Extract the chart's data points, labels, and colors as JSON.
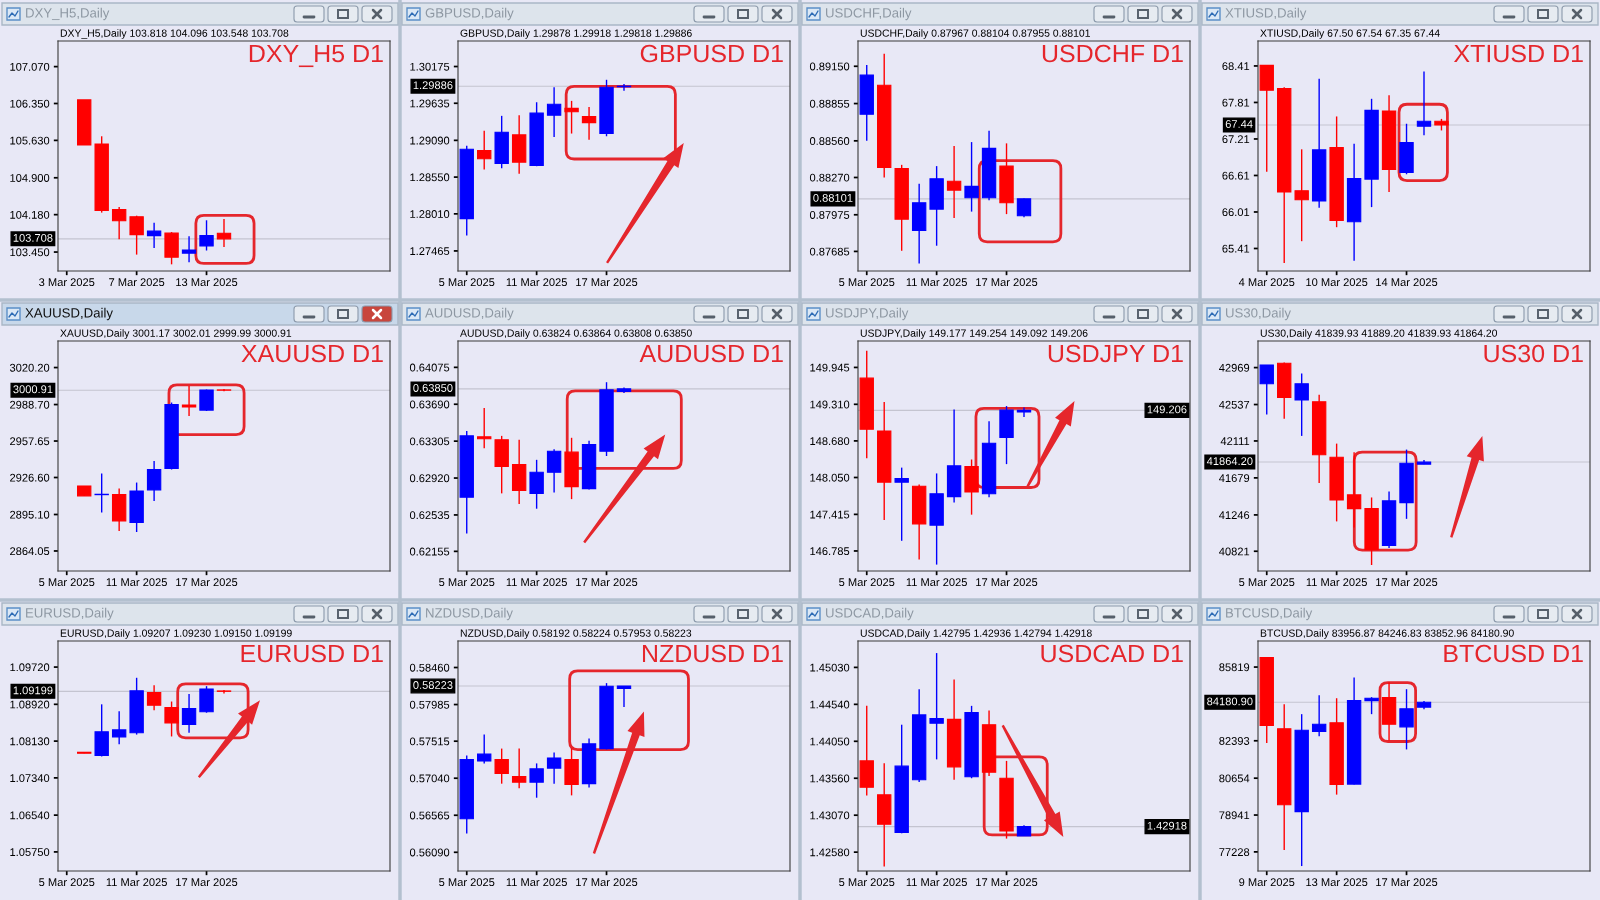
{
  "chart_data": [
    {
      "type": "candlestick",
      "title": "DXY_H5,Daily",
      "subtitle": "DXY_H5,Daily 103.818 104.096 103.548 103.708",
      "annotations": [
        "DXY_H5 D1"
      ],
      "categories": [
        "3 Mar 2025",
        null,
        null,
        null,
        "7 Mar 2025",
        null,
        null,
        null,
        "13 Mar 2025",
        null,
        null,
        null,
        null,
        null,
        null,
        null,
        null,
        null,
        null
      ],
      "ohlc": [
        null,
        [
          106.42,
          106.42,
          105.54,
          105.54
        ],
        [
          105.56,
          105.71,
          104.22,
          104.26
        ],
        [
          104.28,
          104.33,
          103.7,
          104.06
        ],
        [
          104.14,
          104.16,
          103.4,
          103.79
        ],
        [
          103.77,
          104.02,
          103.53,
          103.86
        ],
        [
          103.82,
          103.84,
          103.21,
          103.35
        ],
        [
          103.43,
          103.76,
          103.25,
          103.49
        ],
        [
          103.57,
          104.07,
          103.48,
          103.77
        ],
        [
          103.818,
          104.096,
          103.548,
          103.708
        ],
        null,
        null,
        null,
        null,
        null,
        null,
        null,
        null,
        null
      ],
      "colors": [
        null,
        "#ff0000",
        "#ff0000",
        "#ff0000",
        "#ff0000",
        "#0000ff",
        "#ff0000",
        "#0000ff",
        "#0000ff",
        "#ff0000",
        null,
        null,
        null,
        null,
        null,
        null,
        null,
        null,
        null
      ],
      "ylim": [
        103.08,
        107.57
      ],
      "yticks": [
        {
          "value": 103.45,
          "label": "103.450"
        },
        {
          "value": 104.18,
          "label": "104.180"
        },
        {
          "value": 104.9,
          "label": "104.900"
        },
        {
          "value": 105.63,
          "label": "105.630"
        },
        {
          "value": 106.35,
          "label": "106.350"
        },
        {
          "value": 107.07,
          "label": "107.070"
        }
      ],
      "ref_lines": [
        {
          "axis": "y",
          "value": 103.708,
          "label": "103.708",
          "color": "#c4c4d0"
        }
      ]
    },
    {
      "type": "candlestick",
      "title": "GBPUSD,Daily",
      "subtitle": "GBPUSD,Daily 1.29878 1.29918 1.29818 1.29886",
      "annotations": [
        "GBPUSD D1"
      ],
      "categories": [
        "5 Mar 2025",
        null,
        null,
        null,
        "11 Mar 2025",
        null,
        null,
        null,
        "17 Mar 2025",
        null,
        null,
        null,
        null,
        null,
        null,
        null,
        null,
        null,
        null
      ],
      "ohlc": [
        [
          1.2794,
          1.2901,
          1.2769,
          1.2896
        ],
        [
          1.2894,
          1.2923,
          1.2866,
          1.2882
        ],
        [
          1.2875,
          1.2945,
          1.2868,
          1.2921
        ],
        [
          1.2917,
          1.2946,
          1.286,
          1.2877
        ],
        [
          1.2872,
          1.2965,
          1.2871,
          1.2949
        ],
        [
          1.2946,
          1.2987,
          1.2914,
          1.2962
        ],
        [
          1.2956,
          1.2967,
          1.2919,
          1.2951
        ],
        [
          1.2944,
          1.2958,
          1.291,
          1.2935
        ],
        [
          1.2919,
          1.2998,
          1.2915,
          1.2987
        ],
        [
          1.29878,
          1.29918,
          1.29818,
          1.29886
        ],
        null,
        null,
        null,
        null,
        null,
        null,
        null,
        null,
        null
      ],
      "colors": [
        "#0000ff",
        "#ff0000",
        "#0000ff",
        "#ff0000",
        "#0000ff",
        "#0000ff",
        "#ff0000",
        "#ff0000",
        "#0000ff",
        "#0000ff",
        null,
        null,
        null,
        null,
        null,
        null,
        null,
        null,
        null
      ],
      "ylim": [
        1.2717,
        1.3055
      ],
      "yticks": [
        1.27465,
        {
          "value": 1.2801,
          "label": "1.28010"
        },
        {
          "value": 1.2855,
          "label": "1.28550"
        },
        {
          "value": 1.2909,
          "label": "1.29090"
        },
        1.29635,
        1.30175
      ],
      "ref_lines": [
        {
          "axis": "y",
          "value": 1.29886,
          "label": "1.29886",
          "color": "#c4c4d0"
        }
      ]
    },
    {
      "type": "candlestick",
      "title": "USDCHF,Daily",
      "subtitle": "USDCHF,Daily 0.87967 0.88104 0.87955 0.88101",
      "annotations": [
        "USDCHF D1"
      ],
      "categories": [
        "5 Mar 2025",
        null,
        null,
        null,
        "11 Mar 2025",
        null,
        null,
        null,
        "17 Mar 2025",
        null,
        null,
        null,
        null,
        null,
        null,
        null,
        null,
        null,
        null
      ],
      "ohlc": [
        [
          0.8877,
          0.8916,
          0.8856,
          0.8908
        ],
        [
          0.89,
          0.8925,
          0.8827,
          0.8835
        ],
        [
          0.8834,
          0.8837,
          0.8769,
          0.8794
        ],
        [
          0.8785,
          0.8822,
          0.8759,
          0.8807
        ],
        [
          0.8802,
          0.8836,
          0.8773,
          0.8826
        ],
        [
          0.8824,
          0.8852,
          0.8795,
          0.8817
        ],
        [
          0.8811,
          0.8855,
          0.88,
          0.882
        ],
        [
          0.8811,
          0.8864,
          0.8809,
          0.885
        ],
        [
          0.8836,
          0.8854,
          0.8798,
          0.8807
        ],
        [
          0.87967,
          0.88104,
          0.87955,
          0.88101
        ],
        null,
        null,
        null,
        null,
        null,
        null,
        null,
        null,
        null
      ],
      "colors": [
        "#0000ff",
        "#ff0000",
        "#ff0000",
        "#0000ff",
        "#0000ff",
        "#ff0000",
        "#0000ff",
        "#0000ff",
        "#ff0000",
        "#0000ff",
        null,
        null,
        null,
        null,
        null,
        null,
        null,
        null,
        null
      ],
      "ylim": [
        0.8753,
        0.8935
      ],
      "yticks": [
        0.87685,
        0.87975,
        {
          "value": 0.8827,
          "label": "0.88270"
        },
        {
          "value": 0.8856,
          "label": "0.88560"
        },
        0.88855,
        {
          "value": 0.8915,
          "label": "0.89150"
        }
      ],
      "ref_lines": [
        {
          "axis": "y",
          "value": 0.88101,
          "label": "0.88101",
          "color": "#c4c4d0"
        }
      ]
    },
    {
      "type": "candlestick",
      "title": "XTIUSD,Daily",
      "subtitle": "XTIUSD,Daily 67.50 67.54 67.35 67.44",
      "annotations": [
        "XTIUSD D1"
      ],
      "categories": [
        "4 Mar 2025",
        null,
        null,
        null,
        "10 Mar 2025",
        null,
        null,
        null,
        "14 Mar 2025",
        null,
        null,
        null,
        null,
        null,
        null,
        null,
        null,
        null,
        null
      ],
      "ohlc": [
        [
          68.42,
          68.42,
          66.67,
          68.01
        ],
        [
          68.04,
          68.06,
          65.17,
          66.34
        ],
        [
          66.36,
          67.04,
          65.53,
          66.21
        ],
        [
          66.19,
          68.2,
          66.08,
          67.03
        ],
        [
          67.07,
          67.58,
          65.76,
          65.87
        ],
        [
          65.85,
          67.13,
          65.21,
          66.56
        ],
        [
          66.55,
          67.87,
          66.09,
          67.68
        ],
        [
          67.67,
          67.93,
          66.34,
          66.71
        ],
        [
          66.66,
          67.46,
          66.63,
          67.15
        ],
        [
          67.42,
          68.32,
          67.27,
          67.5
        ],
        [
          67.5,
          67.54,
          67.35,
          67.44
        ],
        null,
        null,
        null,
        null,
        null,
        null,
        null,
        null
      ],
      "colors": [
        "#ff0000",
        "#ff0000",
        "#ff0000",
        "#0000ff",
        "#ff0000",
        "#0000ff",
        "#0000ff",
        "#ff0000",
        "#0000ff",
        "#0000ff",
        "#ff0000",
        null,
        null,
        null,
        null,
        null,
        null,
        null,
        null
      ],
      "ylim": [
        65.04,
        68.82
      ],
      "yticks": [
        65.41,
        66.01,
        66.61,
        67.21,
        67.81,
        68.41
      ],
      "ref_lines": [
        {
          "axis": "y",
          "value": 67.44,
          "label": "67.44",
          "color": "#c4c4d0"
        }
      ]
    },
    {
      "type": "candlestick",
      "title": "XAUUSD,Daily",
      "subtitle": "XAUUSD,Daily 3001.17 3002.01 2999.99 3000.91",
      "annotations": [
        "XAUUSD D1"
      ],
      "categories": [
        "5 Mar 2025",
        null,
        null,
        null,
        "11 Mar 2025",
        null,
        null,
        null,
        "17 Mar 2025",
        null,
        null,
        null,
        null,
        null,
        null,
        null,
        null,
        null,
        null
      ],
      "ohlc": [
        null,
        [
          2919.4,
          2919.4,
          2910.9,
          2910.9
        ],
        [
          2912.0,
          2930.0,
          2896.8,
          2912.3
        ],
        [
          2912.1,
          2917.2,
          2881.1,
          2889.6
        ],
        [
          2888.3,
          2922.3,
          2880.2,
          2915.1
        ],
        [
          2916.0,
          2940.6,
          2906.6,
          2933.4
        ],
        [
          2934.3,
          2990.4,
          2933.4,
          2988.7
        ],
        [
          2988.3,
          3004.5,
          2978.9,
          2986.6
        ],
        [
          2984.0,
          3001.5,
          2983.2,
          3001.1
        ],
        [
          3001.17,
          3002.01,
          2999.99,
          3000.91
        ],
        null,
        null,
        null,
        null,
        null,
        null,
        null,
        null,
        null
      ],
      "colors": [
        null,
        "#ff0000",
        "#0000ff",
        "#ff0000",
        "#0000ff",
        "#0000ff",
        "#0000ff",
        "#ff0000",
        "#0000ff",
        "#ff0000",
        null,
        null,
        null,
        null,
        null,
        null,
        null,
        null,
        null
      ],
      "ylim": [
        2847.0,
        3042.8
      ],
      "yticks": [
        2864.05,
        {
          "value": 2895.1,
          "label": "2895.10"
        },
        {
          "value": 2926.6,
          "label": "2926.60"
        },
        2957.65,
        {
          "value": 2988.7,
          "label": "2988.70"
        },
        {
          "value": 3020.2,
          "label": "3020.20"
        }
      ],
      "ref_lines": [
        {
          "axis": "y",
          "value": 3000.91,
          "label": "3000.91",
          "color": "#c4c4d0"
        }
      ]
    },
    {
      "type": "candlestick",
      "title": "AUDUSD,Daily",
      "subtitle": "AUDUSD,Daily 0.63824 0.63864 0.63808 0.63850",
      "annotations": [
        "AUDUSD D1"
      ],
      "categories": [
        "5 Mar 2025",
        null,
        null,
        null,
        "11 Mar 2025",
        null,
        null,
        null,
        "17 Mar 2025",
        null,
        null,
        null,
        null,
        null,
        null,
        null,
        null,
        null,
        null
      ],
      "ohlc": [
        [
          0.6272,
          0.6341,
          0.6234,
          0.6336
        ],
        [
          0.6335,
          0.6365,
          0.6323,
          0.6333
        ],
        [
          0.6332,
          0.6336,
          0.6276,
          0.6304
        ],
        [
          0.6306,
          0.6332,
          0.6265,
          0.6279
        ],
        [
          0.6276,
          0.6311,
          0.626,
          0.6298
        ],
        [
          0.6298,
          0.6322,
          0.6277,
          0.632
        ],
        [
          0.6319,
          0.6334,
          0.627,
          0.6283
        ],
        [
          0.6281,
          0.6331,
          0.628,
          0.6327
        ],
        [
          0.632,
          0.6392,
          0.6315,
          0.6384
        ],
        [
          0.63824,
          0.63864,
          0.63808,
          0.6385
        ],
        null,
        null,
        null,
        null,
        null,
        null,
        null,
        null,
        null
      ],
      "colors": [
        "#0000ff",
        "#ff0000",
        "#ff0000",
        "#ff0000",
        "#0000ff",
        "#0000ff",
        "#ff0000",
        "#0000ff",
        "#0000ff",
        "#0000ff",
        null,
        null,
        null,
        null,
        null,
        null,
        null,
        null,
        null
      ],
      "ylim": [
        0.6195,
        0.6435
      ],
      "yticks": [
        0.62155,
        0.62535,
        {
          "value": 0.6292,
          "label": "0.62920"
        },
        0.63305,
        {
          "value": 0.6369,
          "label": "0.63690"
        },
        0.64075
      ],
      "ref_lines": [
        {
          "axis": "y",
          "value": 0.6385,
          "label": "0.63850",
          "color": "#c4c4d0"
        }
      ]
    },
    {
      "type": "candlestick",
      "title": "USDJPY,Daily",
      "subtitle": "USDJPY,Daily 149.177 149.254 149.092 149.206",
      "annotations": [
        "USDJPY D1"
      ],
      "categories": [
        "5 Mar 2025",
        null,
        null,
        null,
        "11 Mar 2025",
        null,
        null,
        null,
        "17 Mar 2025",
        null,
        null,
        null,
        null,
        null,
        null,
        null,
        null,
        null,
        null
      ],
      "ohlc": [
        [
          149.76,
          150.23,
          148.38,
          148.88
        ],
        [
          148.85,
          149.35,
          147.32,
          147.97
        ],
        [
          147.97,
          148.22,
          146.96,
          148.03
        ],
        [
          147.9,
          147.93,
          146.64,
          147.25
        ],
        [
          147.23,
          148.12,
          146.55,
          147.77
        ],
        [
          147.72,
          149.22,
          147.62,
          148.25
        ],
        [
          148.24,
          148.36,
          147.41,
          147.8
        ],
        [
          147.77,
          149.02,
          147.71,
          148.64
        ],
        [
          148.74,
          149.28,
          148.28,
          149.21
        ],
        [
          149.177,
          149.254,
          149.092,
          149.206
        ],
        null,
        null,
        null,
        null,
        null,
        null,
        null,
        null,
        null
      ],
      "colors": [
        "#ff0000",
        "#ff0000",
        "#0000ff",
        "#ff0000",
        "#0000ff",
        "#0000ff",
        "#ff0000",
        "#0000ff",
        "#0000ff",
        "#0000ff",
        null,
        null,
        null,
        null,
        null,
        null,
        null,
        null,
        null
      ],
      "ylim": [
        146.44,
        150.4
      ],
      "yticks": [
        146.785,
        147.415,
        {
          "value": 148.05,
          "label": "148.050"
        },
        {
          "value": 148.68,
          "label": "148.680"
        },
        {
          "value": 149.31,
          "label": "149.310"
        },
        149.945
      ],
      "ref_lines": [
        {
          "axis": "y",
          "value": 149.206,
          "label": "149.206",
          "color": "#c4c4d0"
        }
      ]
    },
    {
      "type": "candlestick",
      "title": "US30,Daily",
      "subtitle": "US30,Daily 41839.93 41889.20 41839.93 41864.20",
      "annotations": [
        "US30 D1"
      ],
      "categories": [
        "5 Mar 2025",
        null,
        null,
        null,
        "11 Mar 2025",
        null,
        null,
        null,
        "17 Mar 2025",
        null,
        null,
        null,
        null,
        null,
        null,
        null,
        null,
        null,
        null
      ],
      "ohlc": [
        [
          42780,
          43000,
          42420,
          43000
        ],
        [
          43020,
          43030,
          42370,
          42620
        ],
        [
          42590,
          42900,
          42170,
          42780
        ],
        [
          42570,
          42650,
          41620,
          41950
        ],
        [
          41920,
          42080,
          41170,
          41420
        ],
        [
          41480,
          41980,
          41100,
          41320
        ],
        [
          41320,
          41450,
          40660,
          40840
        ],
        [
          40890,
          41520,
          40860,
          41410
        ],
        [
          41390,
          42010,
          41200,
          41850
        ],
        [
          41839.93,
          41889.2,
          41839.93,
          41864.2
        ],
        null,
        null,
        null,
        null,
        null,
        null,
        null,
        null,
        null
      ],
      "colors": [
        "#0000ff",
        "#ff0000",
        "#0000ff",
        "#ff0000",
        "#ff0000",
        "#ff0000",
        "#ff0000",
        "#0000ff",
        "#0000ff",
        "#0000ff",
        null,
        null,
        null,
        null,
        null,
        null,
        null,
        null,
        null
      ],
      "ylim": [
        40590,
        43280
      ],
      "yticks": [
        40821,
        41246,
        41679,
        42111,
        42537,
        42969
      ],
      "ref_lines": [
        {
          "axis": "y",
          "value": 41864.2,
          "label": "41864.20",
          "color": "#c4c4d0"
        }
      ]
    },
    {
      "type": "candlestick",
      "title": "EURUSD,Daily",
      "subtitle": "EURUSD,Daily 1.09207 1.09230 1.09150 1.09199",
      "annotations": [
        "EURUSD D1"
      ],
      "categories": [
        "5 Mar 2025",
        null,
        null,
        null,
        "11 Mar 2025",
        null,
        null,
        null,
        "17 Mar 2025",
        null,
        null,
        null,
        null,
        null,
        null,
        null,
        null,
        null,
        null
      ],
      "ohlc": [
        null,
        [
          1.0789,
          1.0789,
          1.0787,
          1.0787
        ],
        [
          1.0782,
          1.0892,
          1.078,
          1.0833
        ],
        [
          1.0822,
          1.0877,
          1.0806,
          1.0837
        ],
        [
          1.0831,
          1.0949,
          1.0827,
          1.0921
        ],
        [
          1.0917,
          1.0933,
          1.0879,
          1.089
        ],
        [
          1.0885,
          1.0898,
          1.0823,
          1.0852
        ],
        [
          1.0849,
          1.0914,
          1.0831,
          1.0883
        ],
        [
          1.0876,
          1.0931,
          1.0874,
          1.0925
        ],
        [
          1.09207,
          1.0923,
          1.0915,
          1.09199
        ],
        null,
        null,
        null,
        null,
        null,
        null,
        null,
        null,
        null
      ],
      "colors": [
        null,
        "#ff0000",
        "#0000ff",
        "#0000ff",
        "#0000ff",
        "#ff0000",
        "#ff0000",
        "#0000ff",
        "#0000ff",
        "#ff0000",
        null,
        null,
        null,
        null,
        null,
        null,
        null,
        null,
        null
      ],
      "ylim": [
        1.0534,
        1.1028
      ],
      "yticks": [
        {
          "value": 1.0575,
          "label": "1.05750"
        },
        {
          "value": 1.0654,
          "label": "1.06540"
        },
        {
          "value": 1.0734,
          "label": "1.07340"
        },
        {
          "value": 1.0813,
          "label": "1.08130"
        },
        {
          "value": 1.0892,
          "label": "1.08920"
        },
        {
          "value": 1.0972,
          "label": "1.09720"
        }
      ],
      "ref_lines": [
        {
          "axis": "y",
          "value": 1.09199,
          "label": "1.09199",
          "color": "#c4c4d0"
        }
      ]
    },
    {
      "type": "candlestick",
      "title": "NZDUSD,Daily",
      "subtitle": "NZDUSD,Daily 0.58192 0.58224 0.57953 0.58223",
      "annotations": [
        "NZDUSD D1"
      ],
      "categories": [
        "5 Mar 2025",
        null,
        null,
        null,
        "11 Mar 2025",
        null,
        null,
        null,
        "17 Mar 2025",
        null,
        null,
        null,
        null,
        null,
        null,
        null,
        null,
        null,
        null
      ],
      "ohlc": [
        [
          0.5652,
          0.5733,
          0.5633,
          0.5728
        ],
        [
          0.5726,
          0.576,
          0.5723,
          0.5735
        ],
        [
          0.5728,
          0.5742,
          0.5697,
          0.571
        ],
        [
          0.5706,
          0.5742,
          0.5691,
          0.5699
        ],
        [
          0.5699,
          0.5723,
          0.5679,
          0.5716
        ],
        [
          0.5717,
          0.5737,
          0.5697,
          0.573
        ],
        [
          0.5728,
          0.5742,
          0.5682,
          0.5696
        ],
        [
          0.5697,
          0.5755,
          0.5692,
          0.5748
        ],
        [
          0.5742,
          0.5826,
          0.5741,
          0.5822
        ],
        [
          0.58192,
          0.58224,
          0.57953,
          0.58223
        ],
        null,
        null,
        null,
        null,
        null,
        null,
        null,
        null,
        null
      ],
      "colors": [
        "#0000ff",
        "#0000ff",
        "#ff0000",
        "#ff0000",
        "#0000ff",
        "#0000ff",
        "#ff0000",
        "#0000ff",
        "#0000ff",
        "#0000ff",
        null,
        null,
        null,
        null,
        null,
        null,
        null,
        null,
        null
      ],
      "ylim": [
        0.5585,
        0.588
      ],
      "yticks": [
        {
          "value": 0.5609,
          "label": "0.56090"
        },
        0.56565,
        {
          "value": 0.5704,
          "label": "0.57040"
        },
        0.57515,
        0.57985,
        {
          "value": 0.5846,
          "label": "0.58460"
        }
      ],
      "ref_lines": [
        {
          "axis": "y",
          "value": 0.58223,
          "label": "0.58223",
          "color": "#c4c4d0"
        }
      ]
    },
    {
      "type": "candlestick",
      "title": "USDCAD,Daily",
      "subtitle": "USDCAD,Daily 1.42795 1.42936 1.42794 1.42918",
      "annotations": [
        "USDCAD D1"
      ],
      "categories": [
        "5 Mar 2025",
        null,
        null,
        null,
        "11 Mar 2025",
        null,
        null,
        null,
        "17 Mar 2025",
        null,
        null,
        null,
        null,
        null,
        null,
        null,
        null,
        null,
        null
      ],
      "ohlc": [
        [
          1.4379,
          1.4452,
          1.4333,
          1.4344
        ],
        [
          1.4334,
          1.4376,
          1.4239,
          1.4295
        ],
        [
          1.4284,
          1.4427,
          1.4283,
          1.4372
        ],
        [
          1.4354,
          1.4474,
          1.4351,
          1.444
        ],
        [
          1.4429,
          1.4522,
          1.4381,
          1.4435
        ],
        [
          1.4434,
          1.4487,
          1.4354,
          1.4371
        ],
        [
          1.4358,
          1.4452,
          1.4356,
          1.4443
        ],
        [
          1.4427,
          1.4446,
          1.4359,
          1.4364
        ],
        [
          1.4356,
          1.4379,
          1.4276,
          1.4286
        ],
        [
          1.42795,
          1.42936,
          1.42794,
          1.42918
        ],
        null,
        null,
        null,
        null,
        null,
        null,
        null,
        null,
        null
      ],
      "colors": [
        "#ff0000",
        "#ff0000",
        "#0000ff",
        "#0000ff",
        "#0000ff",
        "#ff0000",
        "#0000ff",
        "#ff0000",
        "#ff0000",
        "#0000ff",
        null,
        null,
        null,
        null,
        null,
        null,
        null,
        null,
        null
      ],
      "ylim": [
        1.4233,
        1.4538
      ],
      "yticks": [
        {
          "value": 1.4258,
          "label": "1.42580"
        },
        {
          "value": 1.4307,
          "label": "1.43070"
        },
        {
          "value": 1.4356,
          "label": "1.43560"
        },
        {
          "value": 1.4405,
          "label": "1.44050"
        },
        {
          "value": 1.4454,
          "label": "1.44540"
        },
        {
          "value": 1.4503,
          "label": "1.45030"
        }
      ],
      "ref_lines": [
        {
          "axis": "y",
          "value": 1.42918,
          "label": "1.42918",
          "color": "#c4c4d0"
        }
      ]
    },
    {
      "type": "candlestick",
      "title": "BTCUSD,Daily",
      "subtitle": "BTCUSD,Daily 83956.87 84246.83 83852.96 84180.90",
      "annotations": [
        "BTCUSD D1"
      ],
      "categories": [
        "9 Mar 2025",
        null,
        null,
        null,
        "13 Mar 2025",
        null,
        null,
        null,
        "17 Mar 2025",
        null,
        null,
        null,
        null,
        null,
        null,
        null,
        null,
        null,
        null
      ],
      "ohlc": [
        [
          86260,
          86260,
          82290,
          83110
        ],
        [
          82950,
          84090,
          77320,
          79420
        ],
        [
          79100,
          83630,
          76570,
          82880
        ],
        [
          82830,
          84510,
          82600,
          83160
        ],
        [
          83230,
          84370,
          79890,
          80360
        ],
        [
          80380,
          85330,
          80360,
          84260
        ],
        [
          84260,
          84420,
          83630,
          84370
        ],
        [
          84400,
          85100,
          82410,
          83160
        ],
        [
          83040,
          84790,
          81990,
          83880
        ],
        [
          83956.87,
          84246.83,
          83852.96,
          84180.9
        ],
        null,
        null,
        null,
        null,
        null,
        null,
        null,
        null,
        null
      ],
      "colors": [
        "#ff0000",
        "#ff0000",
        "#0000ff",
        "#0000ff",
        "#ff0000",
        "#0000ff",
        "#0000ff",
        "#ff0000",
        "#0000ff",
        "#0000ff",
        null,
        null,
        null,
        null,
        null,
        null,
        null,
        null,
        null
      ],
      "ylim": [
        76340,
        87030
      ],
      "yticks": [
        77228,
        78941,
        80654,
        82393,
        85819
      ],
      "ref_lines": [
        {
          "axis": "y",
          "value": 84180.9,
          "label": "84180.90",
          "color": "#c4c4d0"
        }
      ]
    }
  ]
}
